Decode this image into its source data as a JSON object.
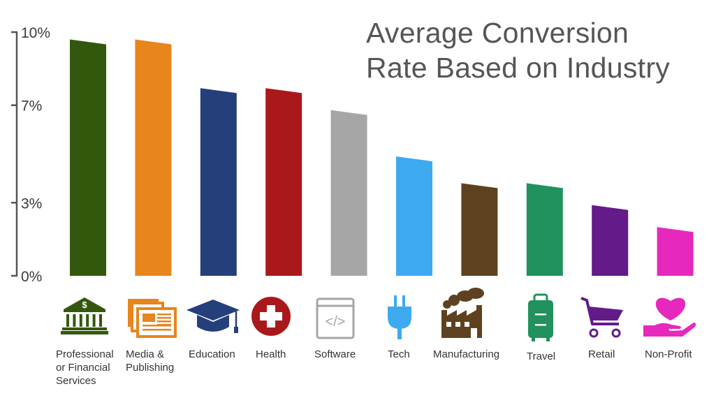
{
  "chart_data": {
    "type": "bar",
    "title_lines": [
      "Average Conversion",
      "Rate Based on Industry"
    ],
    "categories": [
      "Professional\nor Financial\nServices",
      "Media &\nPublishing",
      "Education",
      "Health",
      "Software",
      "Tech",
      "Manufacturing",
      "Travel",
      "Retail",
      "Non-Profit"
    ],
    "values": [
      9.7,
      9.7,
      7.7,
      7.7,
      6.8,
      4.9,
      3.8,
      3.8,
      2.9,
      2.0
    ],
    "ylim": [
      0,
      10
    ],
    "ytick_values": [
      0,
      3,
      7,
      10
    ],
    "ytick_labels": [
      "0%",
      "3%",
      "7%",
      "10%"
    ],
    "xlabel": "",
    "ylabel": "",
    "grid": false,
    "legend": "none",
    "colors": [
      "#33580d",
      "#e8851c",
      "#253f7a",
      "#ab181c",
      "#a6a6a6",
      "#3daaf0",
      "#5e4220",
      "#21915e",
      "#621b88",
      "#e628bd"
    ],
    "icons": [
      "bank-icon",
      "newspaper-icon",
      "graduation-cap-icon",
      "medical-cross-icon",
      "code-window-icon",
      "plug-icon",
      "factory-icon",
      "suitcase-icon",
      "shopping-cart-icon",
      "heart-hand-icon"
    ],
    "icon_symbols": [
      "$",
      "",
      "",
      "",
      "</>",
      "",
      "",
      "",
      "",
      ""
    ]
  }
}
